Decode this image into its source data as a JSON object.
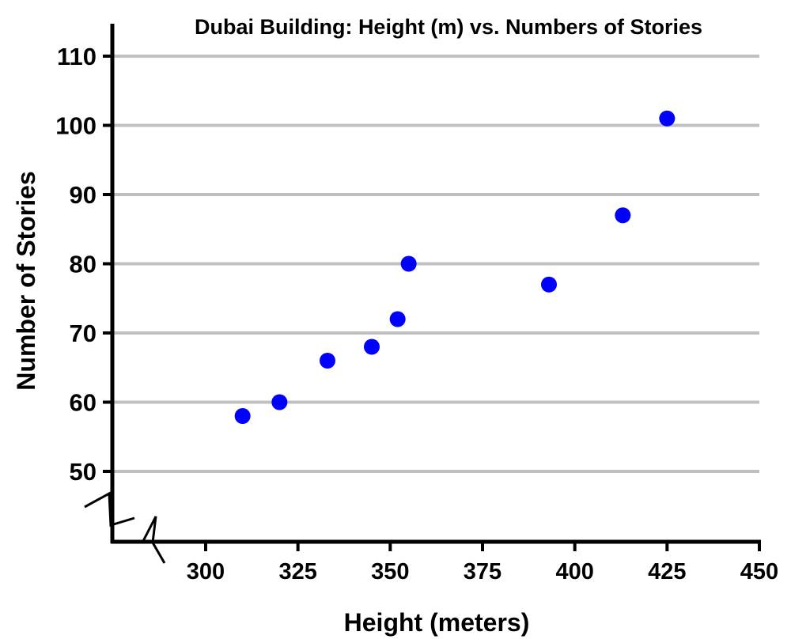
{
  "chart_data": {
    "type": "scatter",
    "title": "Dubai Building: Height (m) vs. Numbers of Stories",
    "xlabel": "Height (meters)",
    "ylabel": "Number of Stories",
    "xlim": [
      275,
      450
    ],
    "ylim": [
      40,
      115
    ],
    "x_ticks": [
      300,
      325,
      350,
      375,
      400,
      425,
      450
    ],
    "y_ticks": [
      50,
      60,
      70,
      80,
      90,
      100,
      110
    ],
    "grid": "horizontal",
    "axis_break": "both axes near origin",
    "series": [
      {
        "color": "#0000ff",
        "points": [
          {
            "x": 310,
            "y": 58
          },
          {
            "x": 320,
            "y": 60
          },
          {
            "x": 333,
            "y": 66
          },
          {
            "x": 345,
            "y": 68
          },
          {
            "x": 352,
            "y": 72
          },
          {
            "x": 355,
            "y": 80
          },
          {
            "x": 393,
            "y": 77
          },
          {
            "x": 413,
            "y": 87
          },
          {
            "x": 425,
            "y": 101
          }
        ]
      }
    ],
    "colors": {
      "axis": "#000000",
      "grid": "#c0c0c0",
      "marker": "#0000ff"
    }
  }
}
